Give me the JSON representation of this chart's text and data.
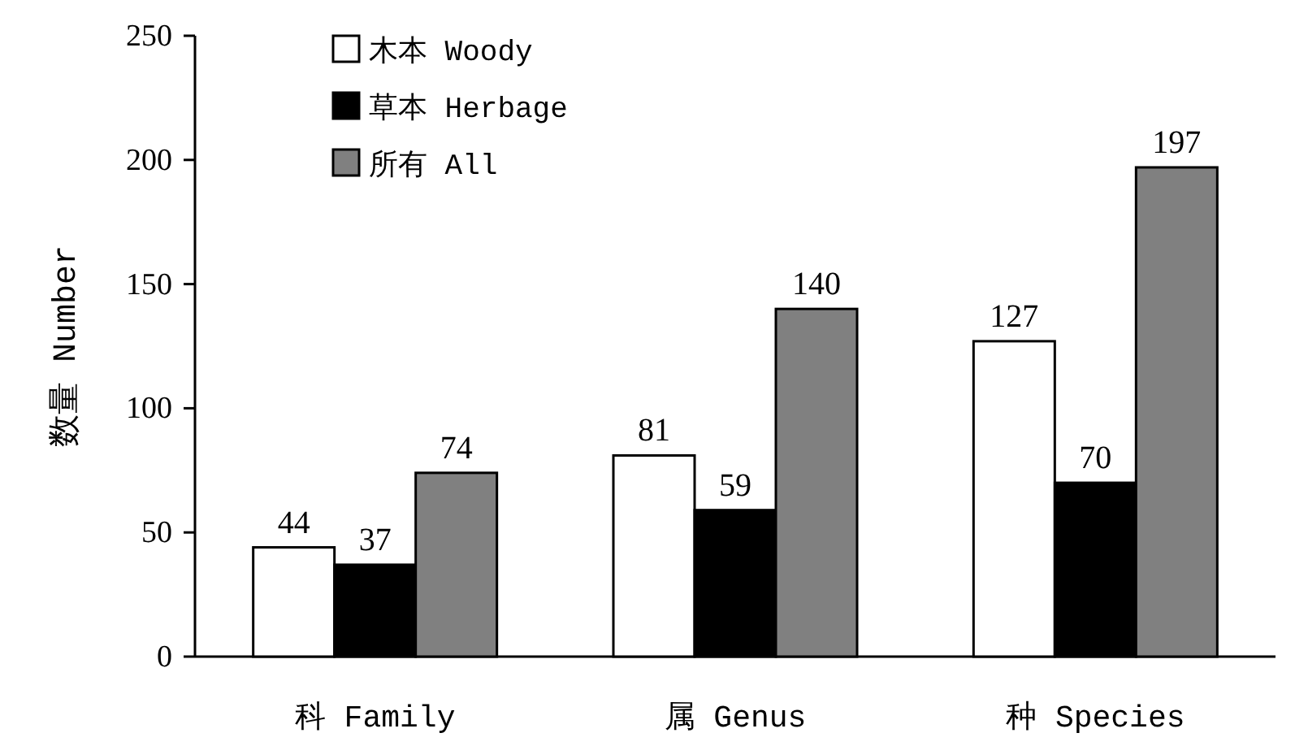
{
  "chart_data": {
    "type": "bar",
    "ylabel": "数量 Number",
    "categories": [
      "科 Family",
      "属 Genus",
      "种 Species"
    ],
    "series": [
      {
        "name": "木本 Woody",
        "color": "#ffffff",
        "values": [
          44,
          81,
          127
        ]
      },
      {
        "name": "草本 Herbage",
        "color": "#000000",
        "values": [
          37,
          59,
          70
        ]
      },
      {
        "name": "所有 All",
        "color": "#808080",
        "values": [
          74,
          140,
          197
        ]
      }
    ],
    "ylim": [
      0,
      250
    ],
    "yticks": [
      0,
      50,
      100,
      150,
      200,
      250
    ],
    "data_labels": true,
    "legend": "top left"
  }
}
